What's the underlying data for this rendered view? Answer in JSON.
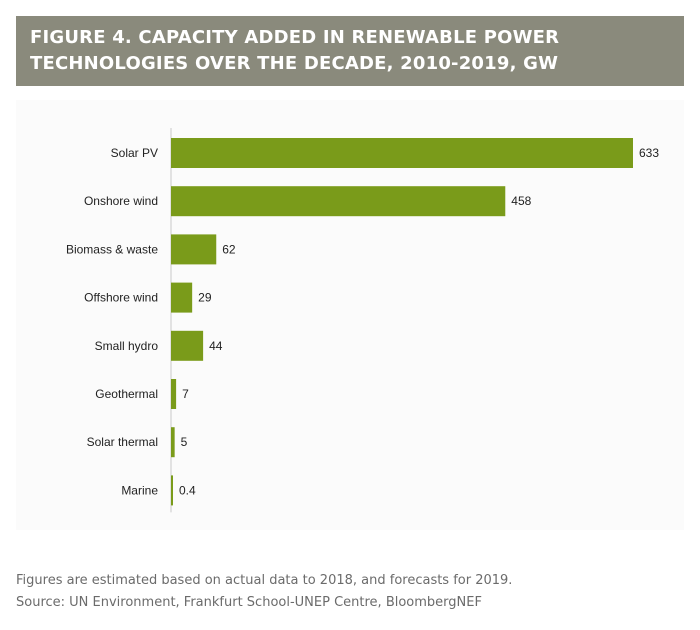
{
  "header": {
    "title": "FIGURE 4. CAPACITY ADDED IN RENEWABLE POWER\nTECHNOLOGIES OVER THE DECADE, 2010-2019, GW"
  },
  "colors": {
    "header_background": "#8a8a7c",
    "bar": "#7a9b1a",
    "axis": "#c8c8c8",
    "footnote_text": "#6b6b6b"
  },
  "chart_data": {
    "type": "bar",
    "orientation": "horizontal",
    "categories": [
      "Solar PV",
      "Onshore wind",
      "Biomass & waste",
      "Offshore wind",
      "Small hydro",
      "Geothermal",
      "Solar thermal",
      "Marine"
    ],
    "values": [
      633,
      458,
      62,
      29,
      44,
      7,
      5,
      0.4
    ],
    "value_labels": [
      "633",
      "458",
      "62",
      "29",
      "44",
      "7",
      "5",
      "0.4"
    ],
    "xlim": [
      0,
      633
    ],
    "grid": false,
    "legend": "none"
  },
  "footnote": {
    "line1": "Figures are estimated based on actual data to 2018, and forecasts for 2019.",
    "line2": "Source: UN Environment, Frankfurt School-UNEP Centre, BloombergNEF"
  }
}
